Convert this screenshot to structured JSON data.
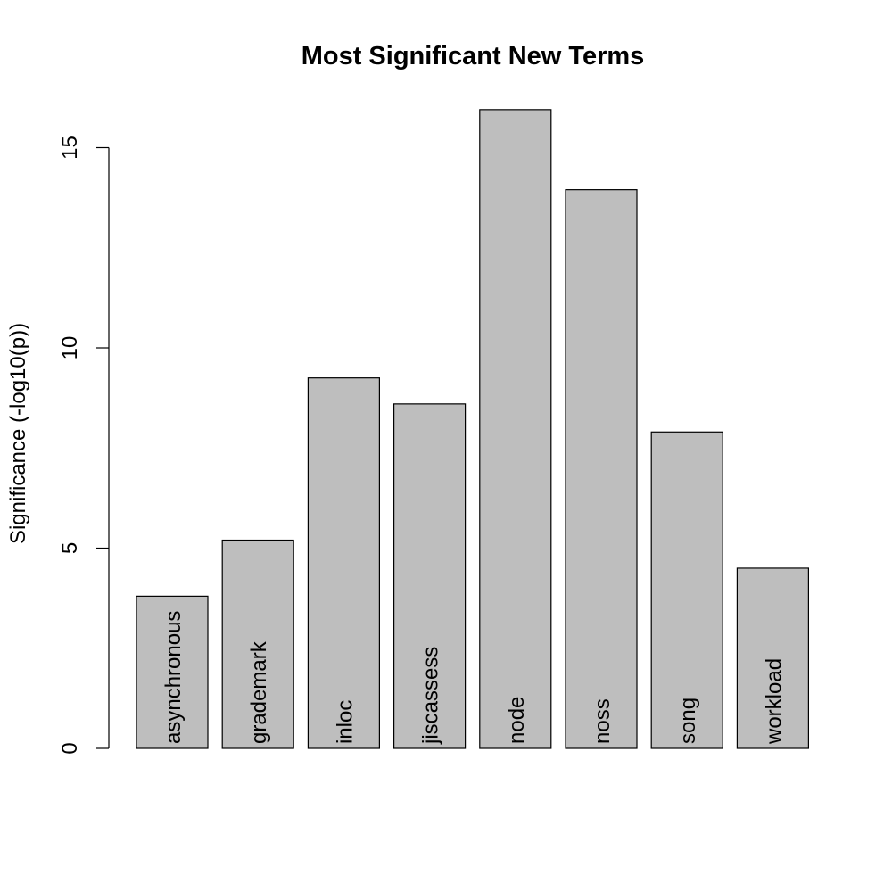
{
  "chart_data": {
    "type": "bar",
    "title": "Most Significant New Terms",
    "xlabel": "",
    "ylabel": "Significance (-log10(p))",
    "categories": [
      "asynchronous",
      "grademark",
      "inloc",
      "jiscassess",
      "node",
      "noss",
      "song",
      "workload"
    ],
    "values": [
      3.8,
      5.2,
      9.25,
      8.6,
      15.95,
      13.95,
      7.9,
      4.5
    ],
    "yticks": [
      0,
      5,
      10,
      15
    ],
    "ylim": [
      0,
      16
    ],
    "bar_color": "#bebebe",
    "grid": false,
    "legend": "none",
    "labels_inside_bars": true
  }
}
